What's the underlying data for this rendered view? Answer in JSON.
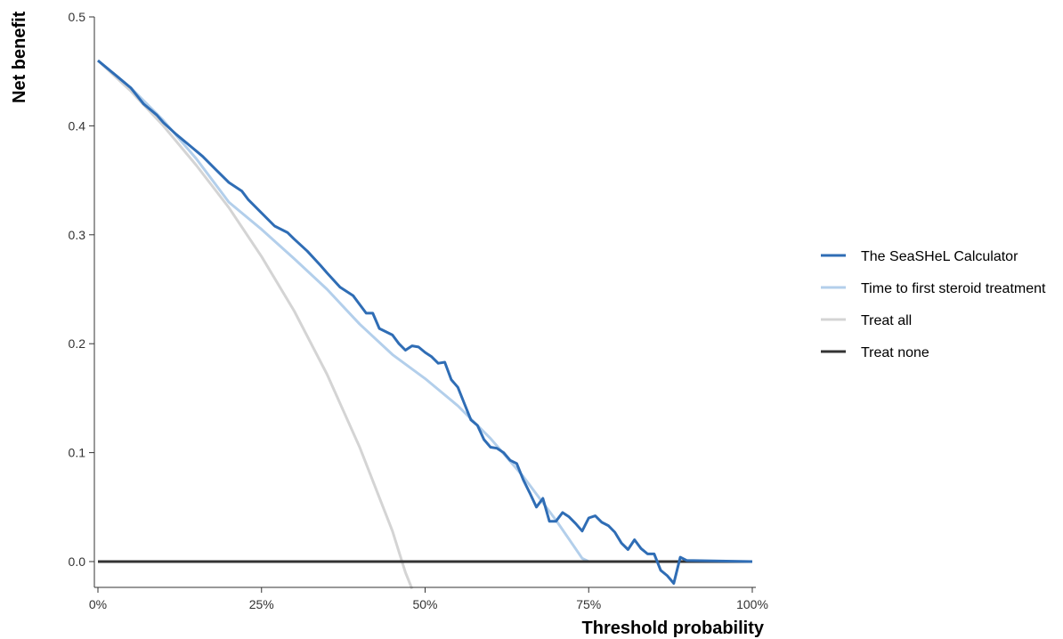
{
  "chart_data": {
    "type": "line",
    "xlabel": "Threshold probability",
    "ylabel": "Net benefit",
    "xlim": [
      0,
      100
    ],
    "ylim": [
      -0.025,
      0.5
    ],
    "x_ticks": [
      0,
      25,
      50,
      75,
      100
    ],
    "x_tick_labels": [
      "0%",
      "25%",
      "50%",
      "75%",
      "100%"
    ],
    "y_ticks": [
      0.0,
      0.1,
      0.2,
      0.3,
      0.4,
      0.5
    ],
    "y_tick_labels": [
      "0.0",
      "0.1",
      "0.2",
      "0.3",
      "0.4",
      "0.5"
    ],
    "grid": false,
    "legend_position": "right",
    "series": [
      {
        "name": "The SeaSHeL Calculator",
        "color": "#2f6db5",
        "points": [
          [
            0,
            0.46
          ],
          [
            3,
            0.445
          ],
          [
            5,
            0.435
          ],
          [
            7,
            0.42
          ],
          [
            9,
            0.41
          ],
          [
            10,
            0.403
          ],
          [
            12,
            0.392
          ],
          [
            14,
            0.382
          ],
          [
            16,
            0.372
          ],
          [
            18,
            0.36
          ],
          [
            20,
            0.348
          ],
          [
            22,
            0.34
          ],
          [
            23,
            0.332
          ],
          [
            25,
            0.32
          ],
          [
            27,
            0.308
          ],
          [
            29,
            0.302
          ],
          [
            30,
            0.296
          ],
          [
            32,
            0.285
          ],
          [
            34,
            0.272
          ],
          [
            35,
            0.265
          ],
          [
            37,
            0.252
          ],
          [
            39,
            0.244
          ],
          [
            40,
            0.236
          ],
          [
            41,
            0.228
          ],
          [
            42,
            0.228
          ],
          [
            43,
            0.214
          ],
          [
            45,
            0.208
          ],
          [
            46,
            0.2
          ],
          [
            47,
            0.194
          ],
          [
            48,
            0.198
          ],
          [
            49,
            0.197
          ],
          [
            50,
            0.192
          ],
          [
            51,
            0.188
          ],
          [
            52,
            0.182
          ],
          [
            53,
            0.183
          ],
          [
            54,
            0.167
          ],
          [
            55,
            0.16
          ],
          [
            56,
            0.145
          ],
          [
            57,
            0.13
          ],
          [
            58,
            0.125
          ],
          [
            59,
            0.112
          ],
          [
            60,
            0.105
          ],
          [
            61,
            0.104
          ],
          [
            62,
            0.1
          ],
          [
            63,
            0.093
          ],
          [
            64,
            0.09
          ],
          [
            65,
            0.075
          ],
          [
            66,
            0.063
          ],
          [
            67,
            0.05
          ],
          [
            68,
            0.058
          ],
          [
            69,
            0.037
          ],
          [
            70,
            0.037
          ],
          [
            71,
            0.045
          ],
          [
            72,
            0.041
          ],
          [
            73,
            0.035
          ],
          [
            74,
            0.028
          ],
          [
            75,
            0.04
          ],
          [
            76,
            0.042
          ],
          [
            77,
            0.036
          ],
          [
            78,
            0.033
          ],
          [
            79,
            0.027
          ],
          [
            80,
            0.017
          ],
          [
            81,
            0.011
          ],
          [
            82,
            0.02
          ],
          [
            83,
            0.012
          ],
          [
            84,
            0.007
          ],
          [
            85,
            0.007
          ],
          [
            86,
            -0.008
          ],
          [
            87,
            -0.013
          ],
          [
            88,
            -0.02
          ],
          [
            89,
            0.004
          ],
          [
            90,
            0.001
          ],
          [
            100,
            0.0
          ]
        ]
      },
      {
        "name": "Time to first steroid treatment",
        "color": "#b3cfeb",
        "points": [
          [
            0,
            0.46
          ],
          [
            5,
            0.435
          ],
          [
            10,
            0.405
          ],
          [
            15,
            0.37
          ],
          [
            20,
            0.33
          ],
          [
            25,
            0.305
          ],
          [
            30,
            0.278
          ],
          [
            35,
            0.25
          ],
          [
            40,
            0.218
          ],
          [
            45,
            0.19
          ],
          [
            50,
            0.168
          ],
          [
            55,
            0.143
          ],
          [
            60,
            0.113
          ],
          [
            65,
            0.078
          ],
          [
            70,
            0.038
          ],
          [
            74,
            0.003
          ],
          [
            75,
            0.0
          ],
          [
            100,
            0.0
          ]
        ]
      },
      {
        "name": "Treat all",
        "color": "#d4d4d4",
        "points": [
          [
            0,
            0.46
          ],
          [
            5,
            0.432
          ],
          [
            10,
            0.4
          ],
          [
            15,
            0.364
          ],
          [
            20,
            0.325
          ],
          [
            25,
            0.28
          ],
          [
            30,
            0.23
          ],
          [
            35,
            0.172
          ],
          [
            40,
            0.105
          ],
          [
            45,
            0.028
          ],
          [
            47,
            -0.01
          ],
          [
            48,
            -0.025
          ]
        ]
      },
      {
        "name": "Treat none",
        "color": "#333333",
        "points": [
          [
            0,
            0.0
          ],
          [
            100,
            0.0
          ]
        ]
      }
    ]
  }
}
